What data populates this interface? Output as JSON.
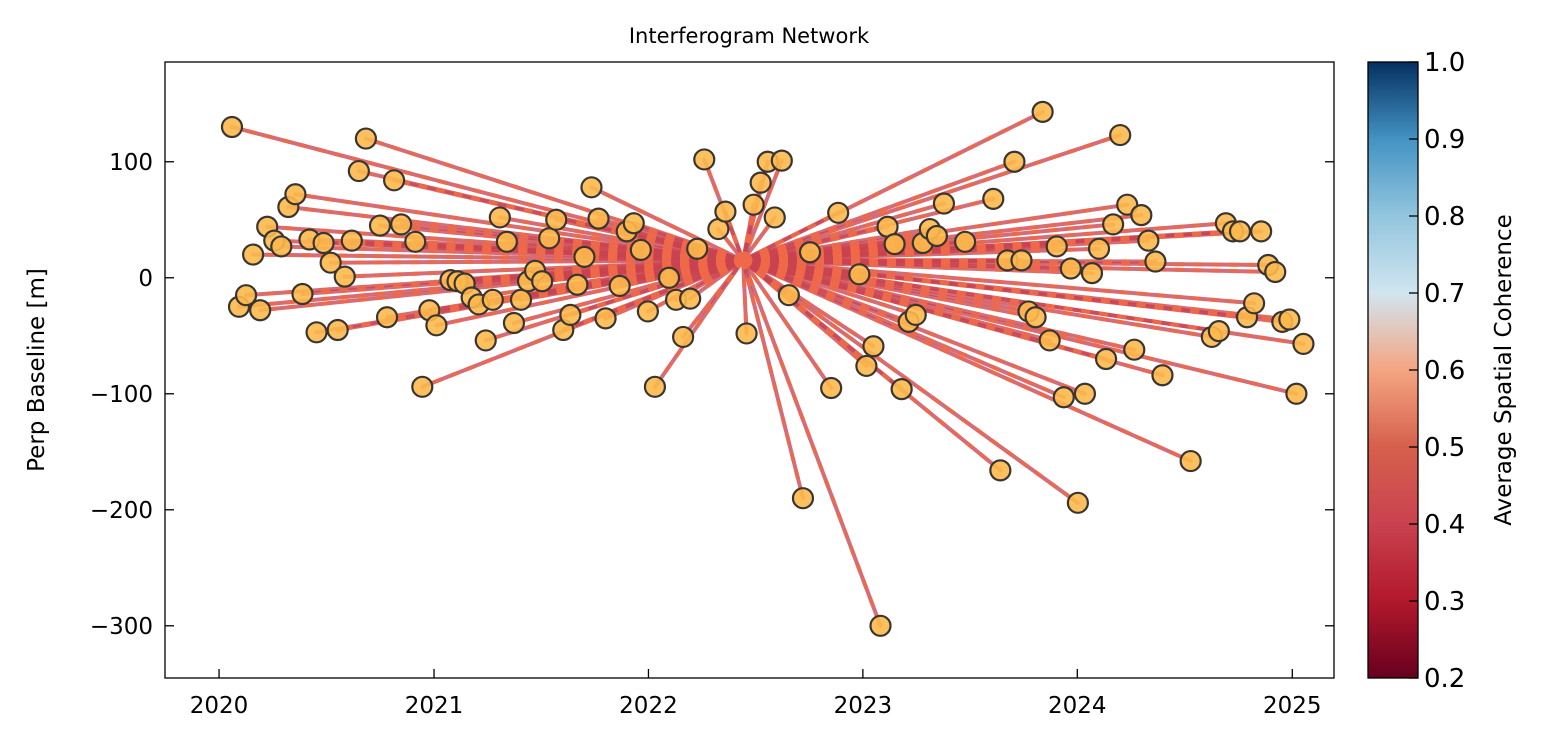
{
  "chart_data": {
    "type": "scatter",
    "title": "Interferogram Network",
    "xlabel": "",
    "ylabel": "Perp Baseline [m]",
    "x_ticks": [
      "2020",
      "2021",
      "2022",
      "2023",
      "2024",
      "2025"
    ],
    "y_ticks": [
      100,
      0,
      -100,
      -200,
      -300
    ],
    "x_range": [
      "2019-10-01",
      "2025-03-13"
    ],
    "ylim": [
      -345,
      186
    ],
    "reference_acquisition": {
      "date": "2022-06-11",
      "perp_baseline": 15
    },
    "colors": {
      "edge_line": "#c9424f",
      "marker_fill": "#fdb94d",
      "marker_edge": "#3a3530",
      "dash": "#ef6a4a"
    },
    "colorbar": {
      "label": "Average Spatial Coherence",
      "range": [
        0.2,
        1.0
      ],
      "ticks": [
        "0.2",
        "0.3",
        "0.4",
        "0.5",
        "0.6",
        "0.7",
        "0.8",
        "0.9",
        "1.0"
      ],
      "colormap": "RdBu",
      "clipped_below": 0.7
    },
    "edges_coherence": "approximately 0.45 for most pairs; some near 0.6",
    "points": [
      {
        "date": "2020-01-23",
        "perp_baseline": 130
      },
      {
        "date": "2020-02-04",
        "perp_baseline": -25
      },
      {
        "date": "2020-02-16",
        "perp_baseline": -15
      },
      {
        "date": "2020-02-28",
        "perp_baseline": 20
      },
      {
        "date": "2020-03-11",
        "perp_baseline": -28
      },
      {
        "date": "2020-03-23",
        "perp_baseline": 44
      },
      {
        "date": "2020-04-04",
        "perp_baseline": 32
      },
      {
        "date": "2020-04-16",
        "perp_baseline": 27
      },
      {
        "date": "2020-04-28",
        "perp_baseline": 61
      },
      {
        "date": "2020-05-10",
        "perp_baseline": 72
      },
      {
        "date": "2020-05-22",
        "perp_baseline": -14
      },
      {
        "date": "2020-06-03",
        "perp_baseline": 33
      },
      {
        "date": "2020-06-15",
        "perp_baseline": -47
      },
      {
        "date": "2020-06-27",
        "perp_baseline": 30
      },
      {
        "date": "2020-07-09",
        "perp_baseline": 13
      },
      {
        "date": "2020-07-21",
        "perp_baseline": -45
      },
      {
        "date": "2020-08-02",
        "perp_baseline": 1
      },
      {
        "date": "2020-08-14",
        "perp_baseline": 32
      },
      {
        "date": "2020-08-26",
        "perp_baseline": 92
      },
      {
        "date": "2020-09-07",
        "perp_baseline": 120
      },
      {
        "date": "2020-10-01",
        "perp_baseline": 45
      },
      {
        "date": "2020-10-13",
        "perp_baseline": -34
      },
      {
        "date": "2020-10-25",
        "perp_baseline": 84
      },
      {
        "date": "2020-11-06",
        "perp_baseline": 46
      },
      {
        "date": "2020-11-30",
        "perp_baseline": 31
      },
      {
        "date": "2020-12-12",
        "perp_baseline": -94
      },
      {
        "date": "2020-12-24",
        "perp_baseline": -28
      },
      {
        "date": "2021-01-05",
        "perp_baseline": -41
      },
      {
        "date": "2021-01-29",
        "perp_baseline": -2
      },
      {
        "date": "2021-02-10",
        "perp_baseline": -3
      },
      {
        "date": "2021-02-22",
        "perp_baseline": -5
      },
      {
        "date": "2021-03-06",
        "perp_baseline": -17
      },
      {
        "date": "2021-03-18",
        "perp_baseline": -23
      },
      {
        "date": "2021-03-30",
        "perp_baseline": -54
      },
      {
        "date": "2021-04-11",
        "perp_baseline": -19
      },
      {
        "date": "2021-04-23",
        "perp_baseline": 52
      },
      {
        "date": "2021-05-05",
        "perp_baseline": 31
      },
      {
        "date": "2021-05-17",
        "perp_baseline": -39
      },
      {
        "date": "2021-05-29",
        "perp_baseline": -19
      },
      {
        "date": "2021-06-10",
        "perp_baseline": -3
      },
      {
        "date": "2021-06-22",
        "perp_baseline": 6
      },
      {
        "date": "2021-07-04",
        "perp_baseline": -3
      },
      {
        "date": "2021-07-16",
        "perp_baseline": 34
      },
      {
        "date": "2021-07-28",
        "perp_baseline": 50
      },
      {
        "date": "2021-08-09",
        "perp_baseline": -45
      },
      {
        "date": "2021-08-21",
        "perp_baseline": -32
      },
      {
        "date": "2021-09-02",
        "perp_baseline": -6
      },
      {
        "date": "2021-09-14",
        "perp_baseline": 18
      },
      {
        "date": "2021-09-26",
        "perp_baseline": 78
      },
      {
        "date": "2021-10-08",
        "perp_baseline": 51
      },
      {
        "date": "2021-10-20",
        "perp_baseline": -35
      },
      {
        "date": "2021-11-13",
        "perp_baseline": -7
      },
      {
        "date": "2021-11-25",
        "perp_baseline": 40
      },
      {
        "date": "2021-12-07",
        "perp_baseline": 47
      },
      {
        "date": "2021-12-19",
        "perp_baseline": 24
      },
      {
        "date": "2021-12-31",
        "perp_baseline": -29
      },
      {
        "date": "2022-01-12",
        "perp_baseline": -94
      },
      {
        "date": "2022-02-05",
        "perp_baseline": 0
      },
      {
        "date": "2022-02-17",
        "perp_baseline": -19
      },
      {
        "date": "2022-03-01",
        "perp_baseline": -51
      },
      {
        "date": "2022-03-13",
        "perp_baseline": -18
      },
      {
        "date": "2022-03-25",
        "perp_baseline": 25
      },
      {
        "date": "2022-04-06",
        "perp_baseline": 102
      },
      {
        "date": "2022-04-30",
        "perp_baseline": 42
      },
      {
        "date": "2022-05-12",
        "perp_baseline": 57
      },
      {
        "date": "2022-06-17",
        "perp_baseline": -48
      },
      {
        "date": "2022-06-29",
        "perp_baseline": 63
      },
      {
        "date": "2022-07-11",
        "perp_baseline": 82
      },
      {
        "date": "2022-07-23",
        "perp_baseline": 100
      },
      {
        "date": "2022-08-04",
        "perp_baseline": 52
      },
      {
        "date": "2022-08-16",
        "perp_baseline": 101
      },
      {
        "date": "2022-08-28",
        "perp_baseline": -15
      },
      {
        "date": "2022-09-21",
        "perp_baseline": -190
      },
      {
        "date": "2022-10-03",
        "perp_baseline": 22
      },
      {
        "date": "2022-11-08",
        "perp_baseline": -95
      },
      {
        "date": "2022-11-20",
        "perp_baseline": 56
      },
      {
        "date": "2022-12-26",
        "perp_baseline": 3
      },
      {
        "date": "2023-01-07",
        "perp_baseline": -76
      },
      {
        "date": "2023-01-19",
        "perp_baseline": -59
      },
      {
        "date": "2023-01-31",
        "perp_baseline": -300
      },
      {
        "date": "2023-02-12",
        "perp_baseline": 44
      },
      {
        "date": "2023-02-24",
        "perp_baseline": 29
      },
      {
        "date": "2023-03-08",
        "perp_baseline": -96
      },
      {
        "date": "2023-03-20",
        "perp_baseline": -38
      },
      {
        "date": "2023-04-01",
        "perp_baseline": -32
      },
      {
        "date": "2023-04-13",
        "perp_baseline": 30
      },
      {
        "date": "2023-04-25",
        "perp_baseline": 42
      },
      {
        "date": "2023-05-07",
        "perp_baseline": 36
      },
      {
        "date": "2023-05-19",
        "perp_baseline": 64
      },
      {
        "date": "2023-06-24",
        "perp_baseline": 31
      },
      {
        "date": "2023-08-11",
        "perp_baseline": 68
      },
      {
        "date": "2023-08-23",
        "perp_baseline": -166
      },
      {
        "date": "2023-09-04",
        "perp_baseline": 15
      },
      {
        "date": "2023-09-16",
        "perp_baseline": 100
      },
      {
        "date": "2023-09-28",
        "perp_baseline": 15
      },
      {
        "date": "2023-10-10",
        "perp_baseline": -29
      },
      {
        "date": "2023-10-22",
        "perp_baseline": -34
      },
      {
        "date": "2023-11-03",
        "perp_baseline": 143
      },
      {
        "date": "2023-11-15",
        "perp_baseline": -54
      },
      {
        "date": "2023-11-27",
        "perp_baseline": 27
      },
      {
        "date": "2023-12-09",
        "perp_baseline": -103
      },
      {
        "date": "2023-12-21",
        "perp_baseline": 8
      },
      {
        "date": "2024-01-02",
        "perp_baseline": -194
      },
      {
        "date": "2024-01-14",
        "perp_baseline": -100
      },
      {
        "date": "2024-01-26",
        "perp_baseline": 4
      },
      {
        "date": "2024-02-07",
        "perp_baseline": 25
      },
      {
        "date": "2024-02-19",
        "perp_baseline": -70
      },
      {
        "date": "2024-03-02",
        "perp_baseline": 46
      },
      {
        "date": "2024-03-14",
        "perp_baseline": 123
      },
      {
        "date": "2024-03-26",
        "perp_baseline": 63
      },
      {
        "date": "2024-04-07",
        "perp_baseline": -62
      },
      {
        "date": "2024-04-19",
        "perp_baseline": 54
      },
      {
        "date": "2024-05-01",
        "perp_baseline": 32
      },
      {
        "date": "2024-05-13",
        "perp_baseline": 14
      },
      {
        "date": "2024-05-25",
        "perp_baseline": -84
      },
      {
        "date": "2024-07-12",
        "perp_baseline": -158
      },
      {
        "date": "2024-08-17",
        "perp_baseline": -51
      },
      {
        "date": "2024-08-29",
        "perp_baseline": -46
      },
      {
        "date": "2024-09-10",
        "perp_baseline": 47
      },
      {
        "date": "2024-09-22",
        "perp_baseline": 40
      },
      {
        "date": "2024-10-04",
        "perp_baseline": 40
      },
      {
        "date": "2024-10-16",
        "perp_baseline": -34
      },
      {
        "date": "2024-10-28",
        "perp_baseline": -22
      },
      {
        "date": "2024-11-09",
        "perp_baseline": 40
      },
      {
        "date": "2024-11-21",
        "perp_baseline": 11
      },
      {
        "date": "2024-12-03",
        "perp_baseline": 5
      },
      {
        "date": "2024-12-15",
        "perp_baseline": -38
      },
      {
        "date": "2024-12-27",
        "perp_baseline": -36
      },
      {
        "date": "2025-01-08",
        "perp_baseline": -100
      },
      {
        "date": "2025-01-20",
        "perp_baseline": -57
      }
    ]
  }
}
